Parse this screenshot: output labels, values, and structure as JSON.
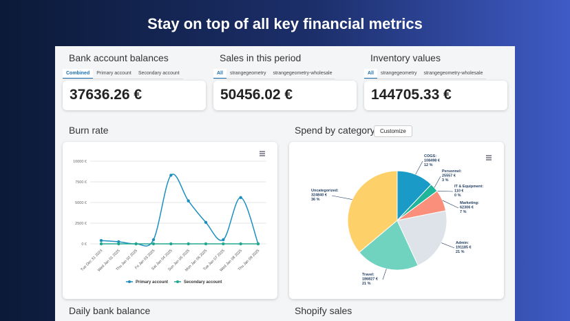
{
  "header": {
    "title": "Stay on top of all key financial metrics"
  },
  "cards": [
    {
      "title": "Bank account balances",
      "tabs": [
        "Combined",
        "Primary account",
        "Secondary account"
      ],
      "value": "37636.26 €"
    },
    {
      "title": "Sales in this period",
      "tabs": [
        "All",
        "strangegeometry",
        "strangegeometry-wholesale"
      ],
      "value": "50456.02 €"
    },
    {
      "title": "Inventory values",
      "tabs": [
        "All",
        "strangegeometry",
        "strangegeometry-wholesale"
      ],
      "value": "144705.33 €"
    }
  ],
  "burn_rate": {
    "title": "Burn rate",
    "chart_data": {
      "type": "line",
      "categories": [
        "Tue Dec 31 2024",
        "Wed Jan 01 2025",
        "Thu Jan 02 2025",
        "Fri Jan 03 2025",
        "Sat Jan 04 2025",
        "Sun Jan 05 2025",
        "Mon Jan 06 2025",
        "Tue Jan 07 2025",
        "Wed Jan 08 2025",
        "Thu Jan 09 2025"
      ],
      "series": [
        {
          "name": "Primary account",
          "color": "#1a8fbf",
          "values": [
            400,
            250,
            0,
            500,
            8300,
            5200,
            2600,
            500,
            5600,
            0
          ]
        },
        {
          "name": "Secondary account",
          "color": "#20a88f",
          "values": [
            0,
            0,
            0,
            0,
            0,
            0,
            0,
            0,
            0,
            0
          ]
        }
      ],
      "ylim": [
        0,
        10000
      ],
      "yticks": [
        {
          "value": 0,
          "label": "0 €"
        },
        {
          "value": 2500,
          "label": "2500 €"
        },
        {
          "value": 5000,
          "label": "5000 €"
        },
        {
          "value": 7500,
          "label": "7500 €"
        },
        {
          "value": 10000,
          "label": "10000 €"
        }
      ],
      "grid": true,
      "legend": "bottom"
    }
  },
  "spend": {
    "title": "Spend by category",
    "button": "Customize",
    "chart_data": {
      "type": "pie",
      "categories": [
        "COGS:",
        "Personnel:",
        "IT & Equipment:",
        "Marketing:",
        "Admin:",
        "Travel:",
        "Uncategorized:"
      ],
      "values": [
        108498,
        25557,
        110,
        62306,
        191185,
        186827,
        324840
      ],
      "value_labels": [
        "108498 €",
        "25557 €",
        "110 €",
        "62306 €",
        "191185 €",
        "186827 €",
        "324840 €"
      ],
      "percent_labels": [
        "12 %",
        "3 %",
        "0 %",
        "7 %",
        "21 %",
        "21 %",
        "36 %"
      ],
      "colors": [
        "#1a9bc7",
        "#1fb59a",
        "#7fd8a0",
        "#fa8f7c",
        "#dde3e8",
        "#6fd3c0",
        "#fdd06a"
      ]
    }
  },
  "sections": [
    "Daily bank balance",
    "Shopify sales"
  ]
}
